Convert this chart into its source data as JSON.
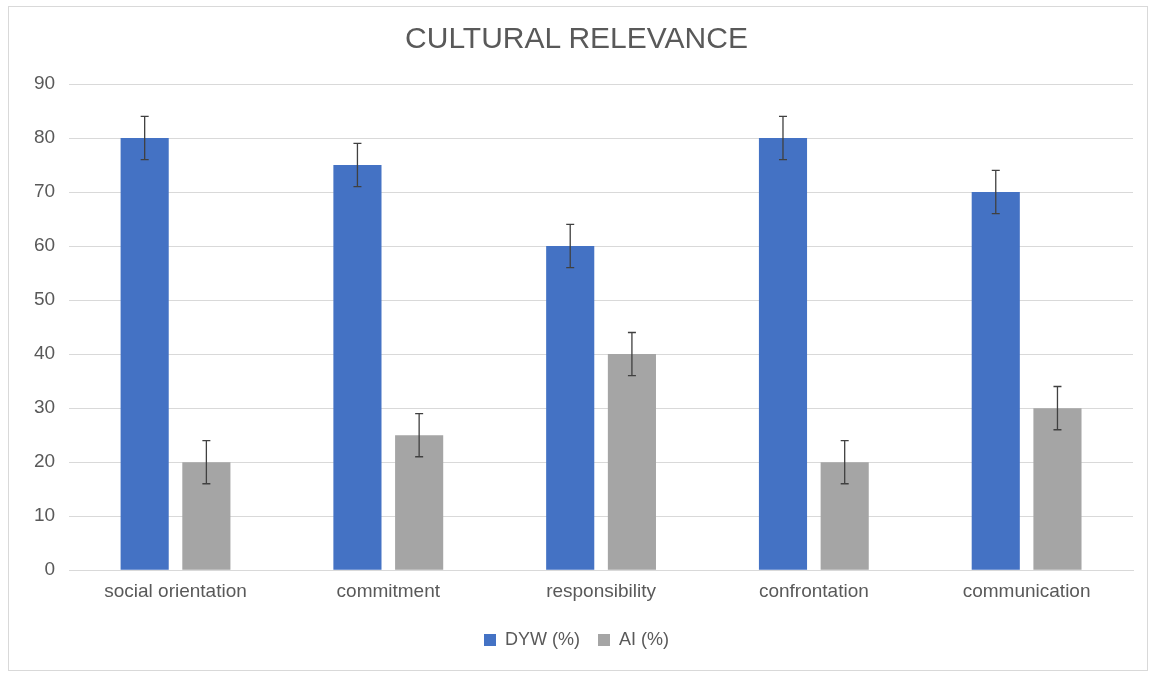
{
  "chart_data": {
    "type": "bar",
    "title": "CULTURAL RELEVANCE",
    "categories": [
      "social orientation",
      "commitment",
      "responsibility",
      "confrontation",
      "communication"
    ],
    "series": [
      {
        "name": "DYW (%)",
        "color": "#4472c4",
        "values": [
          80,
          75,
          60,
          80,
          70
        ],
        "errors": [
          4,
          4,
          4,
          4,
          4
        ]
      },
      {
        "name": "AI (%)",
        "color": "#a5a5a5",
        "values": [
          20,
          25,
          40,
          20,
          30
        ],
        "errors": [
          4,
          4,
          4,
          4,
          4
        ]
      }
    ],
    "ylim": [
      0,
      90
    ],
    "yticks": [
      0,
      10,
      20,
      30,
      40,
      50,
      60,
      70,
      80,
      90
    ],
    "grid": "y",
    "legend": "bottom"
  }
}
